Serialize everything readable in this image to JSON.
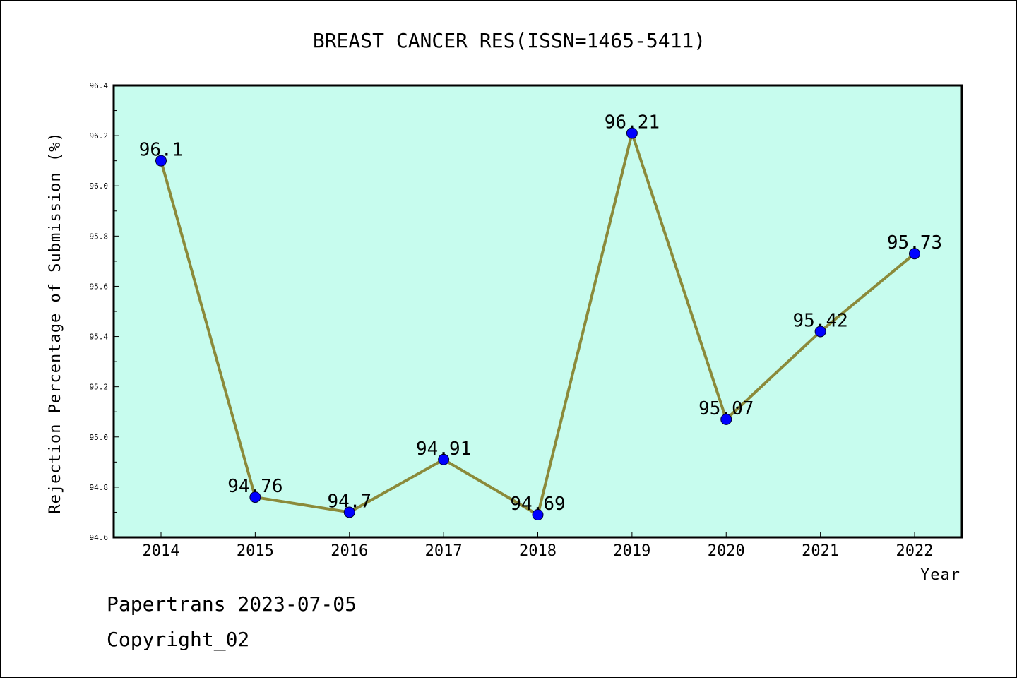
{
  "chart_data": {
    "type": "line",
    "title": "BREAST CANCER RES(ISSN=1465-5411)",
    "xlabel": "Year",
    "ylabel": "Rejection Percentage of Submission (%)",
    "categories": [
      "2014",
      "2015",
      "2016",
      "2017",
      "2018",
      "2019",
      "2020",
      "2021",
      "2022"
    ],
    "values": [
      96.1,
      94.76,
      94.7,
      94.91,
      94.69,
      96.21,
      95.07,
      95.42,
      95.73
    ],
    "data_labels": [
      "96.1",
      "94.76",
      "94.7",
      "94.91",
      "94.69",
      "96.21",
      "95.07",
      "95.42",
      "95.73"
    ],
    "ylim": [
      94.6,
      96.4
    ],
    "yticks": [
      "94.6",
      "94.8",
      "95.0",
      "95.2",
      "95.4",
      "95.6",
      "95.8",
      "96.0",
      "96.2",
      "96.4"
    ],
    "grid": false,
    "colors": {
      "plot_background": "#c7fcee",
      "line": "#8b8a3a",
      "marker": "#0000ff"
    }
  },
  "footer": {
    "line1": "Papertrans 2023-07-05",
    "line2": "Copyright_02"
  }
}
